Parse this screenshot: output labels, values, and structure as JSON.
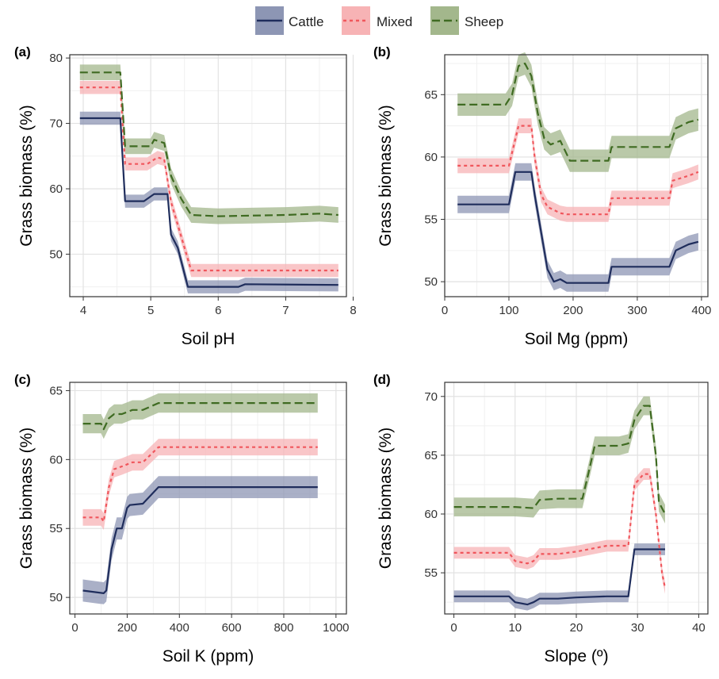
{
  "legend": {
    "items": [
      {
        "label": "Cattle",
        "color": "#1f2d5c",
        "band": "#8d96b4",
        "dash": "solid"
      },
      {
        "label": "Mixed",
        "color": "#f0565c",
        "band": "#f7b3b5",
        "dash": "dotted"
      },
      {
        "label": "Sheep",
        "color": "#3f6b22",
        "band": "#a3b78c",
        "dash": "dashed"
      }
    ]
  },
  "chart_data": [
    {
      "panel": "(a)",
      "type": "line",
      "xlabel": "Soil pH",
      "ylabel": "Grass biomass (%)",
      "xlim": [
        3.8,
        7.9
      ],
      "ylim": [
        43.5,
        80.5
      ],
      "xticks": [
        4,
        5,
        6,
        7,
        8
      ],
      "yticks": [
        50,
        60,
        70,
        80
      ],
      "grid": true,
      "series": [
        {
          "name": "Cattle",
          "band": 1.0,
          "x": [
            3.95,
            4.55,
            4.62,
            4.9,
            5.05,
            5.25,
            5.3,
            5.4,
            5.55,
            6.3,
            6.4,
            7.78
          ],
          "y": [
            70.8,
            70.8,
            58.1,
            58.1,
            59.2,
            59.2,
            53,
            51,
            45,
            45,
            45.4,
            45.3
          ]
        },
        {
          "name": "Mixed",
          "band": 1.0,
          "x": [
            3.95,
            4.55,
            4.62,
            4.95,
            5.1,
            5.2,
            5.3,
            5.5,
            5.6,
            7.78
          ],
          "y": [
            75.5,
            75.5,
            63.8,
            63.8,
            64.8,
            64.5,
            58,
            51,
            47.5,
            47.5
          ]
        },
        {
          "name": "Sheep",
          "band": 1.2,
          "x": [
            3.95,
            4.55,
            4.62,
            5.0,
            5.05,
            5.2,
            5.3,
            5.45,
            5.6,
            6.0,
            6.5,
            7.0,
            7.5,
            7.78
          ],
          "y": [
            77.8,
            77.8,
            66.5,
            66.5,
            67.5,
            67,
            62,
            58.5,
            56,
            55.8,
            55.9,
            56,
            56.2,
            56
          ]
        }
      ]
    },
    {
      "panel": "(b)",
      "type": "line",
      "xlabel": "Soil Mg (ppm)",
      "ylabel": "Grass biomass (%)",
      "xlim": [
        0,
        410
      ],
      "ylim": [
        48.8,
        68.2
      ],
      "xticks": [
        0,
        100,
        200,
        300,
        400
      ],
      "yticks": [
        50,
        55,
        60,
        65
      ],
      "grid": true,
      "series": [
        {
          "name": "Cattle",
          "band": 0.7,
          "x": [
            20,
            100,
            110,
            135,
            140,
            150,
            160,
            170,
            180,
            190,
            255,
            260,
            350,
            360,
            380,
            395
          ],
          "y": [
            56.2,
            56.2,
            58.8,
            58.8,
            57,
            54,
            51,
            50,
            50.2,
            49.9,
            49.9,
            51.2,
            51.2,
            52.5,
            53,
            53.2
          ]
        },
        {
          "name": "Mixed",
          "band": 0.6,
          "x": [
            20,
            100,
            115,
            135,
            140,
            150,
            160,
            180,
            190,
            255,
            260,
            350,
            355,
            380,
            395
          ],
          "y": [
            59.3,
            59.3,
            62.5,
            62.5,
            60,
            57,
            56,
            55.5,
            55.4,
            55.4,
            56.7,
            56.7,
            58.1,
            58.5,
            58.8
          ]
        },
        {
          "name": "Sheep",
          "band": 0.9,
          "x": [
            20,
            95,
            105,
            115,
            125,
            135,
            145,
            155,
            165,
            180,
            195,
            255,
            260,
            350,
            360,
            380,
            395
          ],
          "y": [
            64.2,
            64.2,
            65,
            67.3,
            67.5,
            66.5,
            63.5,
            61.5,
            61,
            61.3,
            59.7,
            59.7,
            60.8,
            60.8,
            62.3,
            62.8,
            63
          ]
        }
      ]
    },
    {
      "panel": "(c)",
      "type": "line",
      "xlabel": "Soil K (ppm)",
      "ylabel": "Grass biomass (%)",
      "xlim": [
        -20,
        1040
      ],
      "ylim": [
        48.8,
        65.6
      ],
      "xticks": [
        0,
        200,
        400,
        600,
        800,
        1000
      ],
      "yticks": [
        50,
        55,
        60,
        65
      ],
      "grid": true,
      "series": [
        {
          "name": "Cattle",
          "band": 0.8,
          "x": [
            30,
            110,
            120,
            140,
            160,
            180,
            200,
            210,
            260,
            320,
            930
          ],
          "y": [
            50.5,
            50.3,
            50.5,
            53.5,
            55,
            55,
            56.5,
            56.7,
            56.8,
            58,
            58
          ]
        },
        {
          "name": "Mixed",
          "band": 0.6,
          "x": [
            30,
            100,
            110,
            130,
            150,
            180,
            220,
            260,
            320,
            930
          ],
          "y": [
            55.8,
            55.8,
            55.5,
            58,
            59.3,
            59.5,
            59.8,
            59.8,
            60.9,
            60.9
          ]
        },
        {
          "name": "Sheep",
          "band": 0.7,
          "x": [
            30,
            100,
            110,
            130,
            150,
            180,
            220,
            260,
            320,
            930
          ],
          "y": [
            62.6,
            62.6,
            62.2,
            63,
            63.3,
            63.3,
            63.6,
            63.6,
            64.1,
            64.1
          ]
        }
      ]
    },
    {
      "panel": "(d)",
      "type": "line",
      "xlabel": "Slope (º)",
      "ylabel": "Grass biomass (%)",
      "xlim": [
        -1.5,
        41.5
      ],
      "ylim": [
        51.5,
        71.2
      ],
      "xticks": [
        0,
        10,
        20,
        30,
        40
      ],
      "yticks": [
        55,
        60,
        65,
        70
      ],
      "grid": true,
      "series": [
        {
          "name": "Cattle",
          "band": 0.5,
          "x": [
            0,
            9,
            10,
            12,
            13,
            14,
            17,
            20,
            25,
            28.5,
            29.5,
            34.5
          ],
          "y": [
            53,
            53,
            52.5,
            52.3,
            52.5,
            52.8,
            52.8,
            52.9,
            53,
            53,
            57,
            57
          ]
        },
        {
          "name": "Mixed",
          "band": 0.5,
          "x": [
            0,
            9,
            10,
            12,
            13,
            14,
            17,
            20,
            25,
            28.5,
            29.5,
            31,
            32,
            33,
            34,
            34.5
          ],
          "y": [
            56.7,
            56.7,
            56,
            55.8,
            56,
            56.6,
            56.6,
            56.8,
            57.3,
            57.3,
            62.5,
            63.4,
            63.4,
            60,
            55,
            53.7
          ]
        },
        {
          "name": "Sheep",
          "band": 0.8,
          "x": [
            0,
            10,
            13,
            14,
            17,
            21,
            22,
            23,
            27,
            28.5,
            29.5,
            31,
            32,
            33,
            33.5,
            34.5
          ],
          "y": [
            60.6,
            60.6,
            60.5,
            61.2,
            61.3,
            61.3,
            63.5,
            65.8,
            65.8,
            66,
            68,
            69.2,
            69.2,
            65,
            61,
            60
          ]
        }
      ]
    }
  ]
}
